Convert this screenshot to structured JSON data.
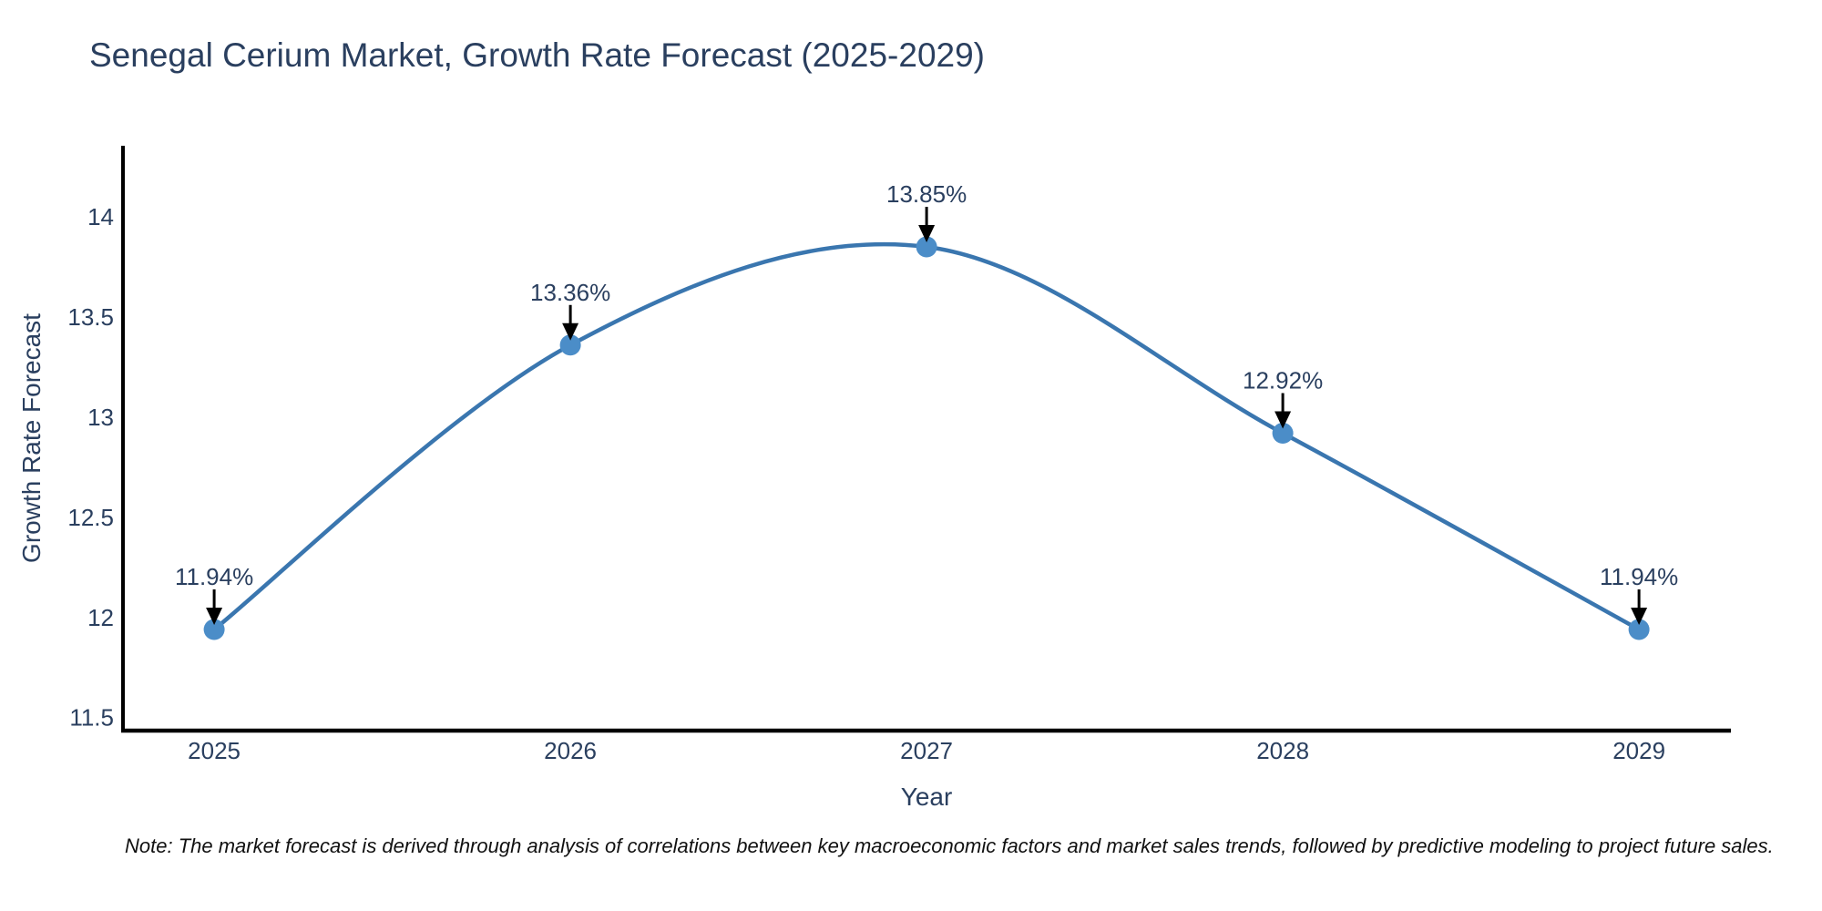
{
  "header": {
    "title": "Senegal Cerium Market, Growth Rate Forecast (2025-2029)"
  },
  "footnote": {
    "text": "Note: The market forecast is derived through analysis of correlations between key macroeconomic factors and market sales trends, followed by predictive modeling to project future sales."
  },
  "colors": {
    "line": "#3A76AF",
    "marker": "#4B8DC8",
    "axis_line": "#000000",
    "text": "#2a3f5f",
    "arrow": "#000000",
    "background": "#ffffff"
  },
  "chart_data": {
    "type": "line",
    "title": "Senegal Cerium Market, Growth Rate Forecast (2025-2029)",
    "xlabel": "Year",
    "ylabel": "Growth Rate Forecast",
    "x": [
      2025,
      2026,
      2027,
      2028,
      2029
    ],
    "y": [
      11.94,
      13.36,
      13.85,
      12.92,
      11.94
    ],
    "point_labels": [
      "11.94%",
      "13.36%",
      "13.85%",
      "12.92%",
      "11.94%"
    ],
    "xtick_values": [
      2025,
      2026,
      2027,
      2028,
      2029
    ],
    "xtick_labels": [
      "2025",
      "2026",
      "2027",
      "2028",
      "2029"
    ],
    "ytick_values": [
      14,
      13.5,
      13,
      12.5,
      12,
      11.5
    ],
    "ytick_labels": [
      "14",
      "13.5",
      "13",
      "12.5",
      "12",
      "11.5"
    ],
    "xlim": [
      2024.744,
      2029.258
    ],
    "ylim": [
      11.435,
      14.355
    ],
    "grid": false,
    "legend": null,
    "line_shape": "spline",
    "markers": true,
    "annotations_have_arrows": true
  }
}
